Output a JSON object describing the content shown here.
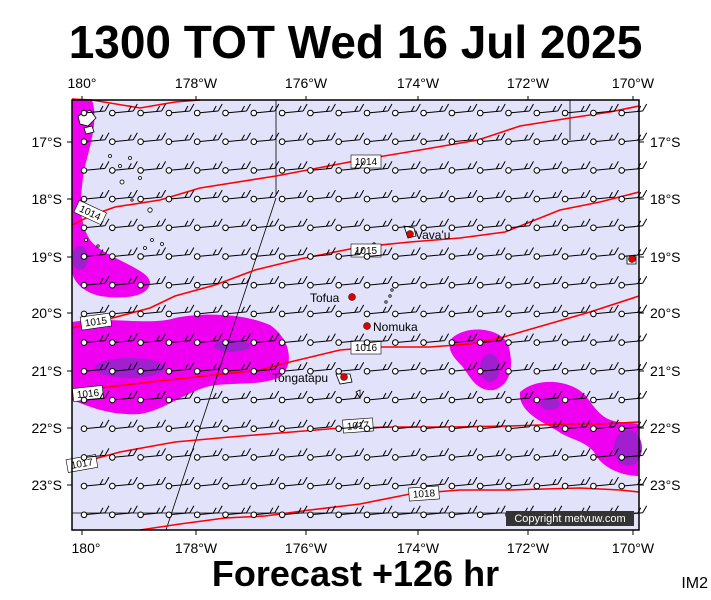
{
  "header": {
    "title": "1300 TOT Wed 16 Jul 2025"
  },
  "footer": {
    "forecast_label": "Forecast +126 hr",
    "image_tag": "IM2"
  },
  "colors": {
    "ocean": "#e2e2fa",
    "isobar": "#ff0000",
    "rain_light": "#f000f0",
    "rain_heavy": "#a020d0",
    "place_dot": "#e00000"
  },
  "axes": {
    "lon_ticks_top": [
      "180°",
      "178°W",
      "176°W",
      "174°W",
      "172°W",
      "170°W"
    ],
    "lon_ticks_bottom": [
      "180°",
      "178°W",
      "176°W",
      "174°W",
      "172°W",
      "170°W"
    ],
    "lat_ticks_left": [
      "17°S",
      "18°S",
      "19°S",
      "20°S",
      "21°S",
      "22°S",
      "23°S"
    ],
    "lat_ticks_right": [
      "17°S",
      "18°S",
      "19°S",
      "20°S",
      "21°S",
      "22°S",
      "23°S"
    ]
  },
  "isobars": [
    {
      "label": "1014",
      "label_side": "left"
    },
    {
      "label": "1014",
      "label_side": "middle"
    },
    {
      "label": "1015",
      "label_side": "middle"
    },
    {
      "label": "1015",
      "label_side": "left"
    },
    {
      "label": "1016",
      "label_side": "middle"
    },
    {
      "label": "1016",
      "label_side": "left"
    },
    {
      "label": "1017",
      "label_side": "middle"
    },
    {
      "label": "1017",
      "label_side": "left"
    },
    {
      "label": "1018",
      "label_side": "middle"
    }
  ],
  "places": [
    {
      "name": "Vava'u"
    },
    {
      "name": "Tofua"
    },
    {
      "name": "Nomuka"
    },
    {
      "name": "Tongatapu"
    }
  ],
  "copyright": "Copyright metvuw.com"
}
